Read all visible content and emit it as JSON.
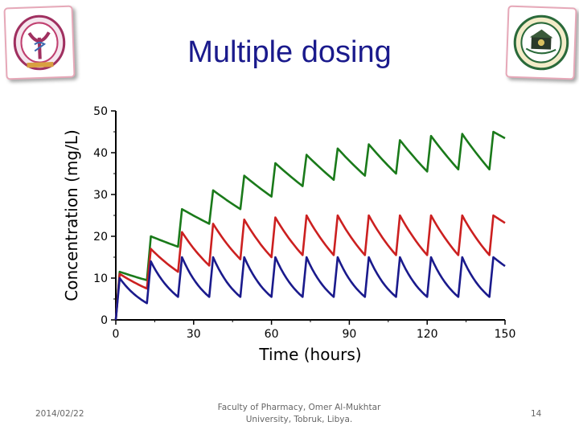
{
  "slide": {
    "title": "Multiple dosing",
    "footer_date": "2014/02/22",
    "footer_faculty": "Faculty of Pharmacy, Omer Al-Mukhtar University, Tobruk, Libya.",
    "page_number": "14"
  },
  "chart_data": {
    "type": "line",
    "xlabel": "Time (hours)",
    "ylabel": "Concentration (mg/L)",
    "xlim": [
      0,
      150
    ],
    "ylim": [
      0,
      50
    ],
    "xticks": [
      0,
      30,
      60,
      90,
      120,
      150
    ],
    "yticks": [
      0,
      10,
      20,
      30,
      40,
      50
    ],
    "dosing_interval_hours": 12,
    "grid": false,
    "series": [
      {
        "color": "#1a7a1a",
        "peak_values": [
          11.5,
          20,
          26.5,
          31,
          34.5,
          37.5,
          39.5,
          41,
          42,
          43,
          44,
          44.5,
          45
        ],
        "trough_values": [
          9.5,
          17.5,
          23,
          26.5,
          29.5,
          32,
          33.5,
          34.5,
          35,
          35.5,
          36,
          36,
          36
        ],
        "final_value": 41.5
      },
      {
        "color": "#cc2020",
        "peak_values": [
          11,
          17,
          21,
          23,
          24,
          24.5,
          25,
          25,
          25,
          25,
          25,
          25,
          25
        ],
        "trough_values": [
          7.5,
          11.5,
          13,
          14.5,
          15,
          15.5,
          15.5,
          15.5,
          15.5,
          15.5,
          15.5,
          15.5,
          15.5
        ],
        "final_value": 21
      },
      {
        "color": "#1a1a8c",
        "peak_values": [
          10,
          14,
          15,
          15,
          15,
          15,
          15,
          15,
          15,
          15,
          15,
          15,
          15
        ],
        "trough_values": [
          4,
          5.5,
          5.5,
          5.5,
          5.5,
          5.5,
          5.5,
          5.5,
          5.5,
          5.5,
          5.5,
          5.5,
          5.5
        ],
        "final_value": 10.5
      }
    ]
  },
  "logos": {
    "left_icon": "pharmacy-faculty-logo",
    "right_icon": "university-seal-logo"
  }
}
